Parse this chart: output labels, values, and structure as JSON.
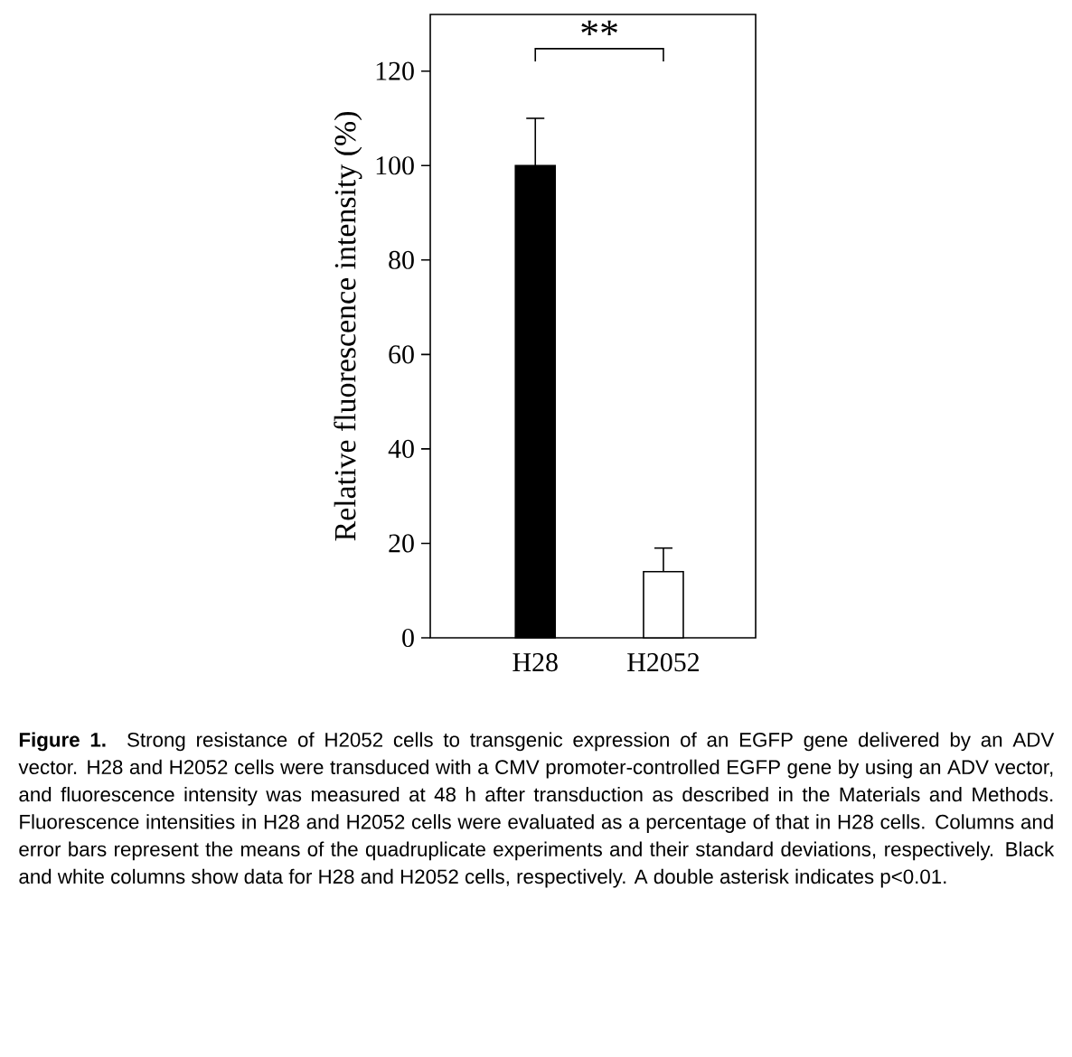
{
  "chart_data": {
    "type": "bar",
    "ylabel": "Relative  fluorescence  intensity  (%)",
    "categories": [
      "H28",
      "H2052"
    ],
    "values": [
      100,
      14
    ],
    "colors": [
      "#000000",
      "#ffffff"
    ],
    "errors": [
      [
        100,
        110
      ],
      [
        14,
        19
      ]
    ],
    "ylim": [
      0,
      132
    ],
    "yticks": [
      0,
      20,
      40,
      60,
      80,
      100,
      120
    ],
    "grid": false,
    "annotations": [
      "**",
      "**Figure 1.** Strong resistance of H2052 cells to transgenic expression of an EGFP gene delivered by an ADV vector.  H28 and H2052 cells were transduced with a CMV promoter-controlled EGFP gene by using an ADV vector, and fluorescence intensity was measured at 48 h after transduction as described in the Materials and Methods. Fluorescence intensities in H28 and H2052 cells were evaluated as a percentage of that in H28 cells. Columns and error bars represent the means of the quadruplicate experiments and their standard deviations, respectively. Black and white columns show data for H28 and H2052 cells, respectively. A double asterisk indicates p<0.01."
    ]
  }
}
